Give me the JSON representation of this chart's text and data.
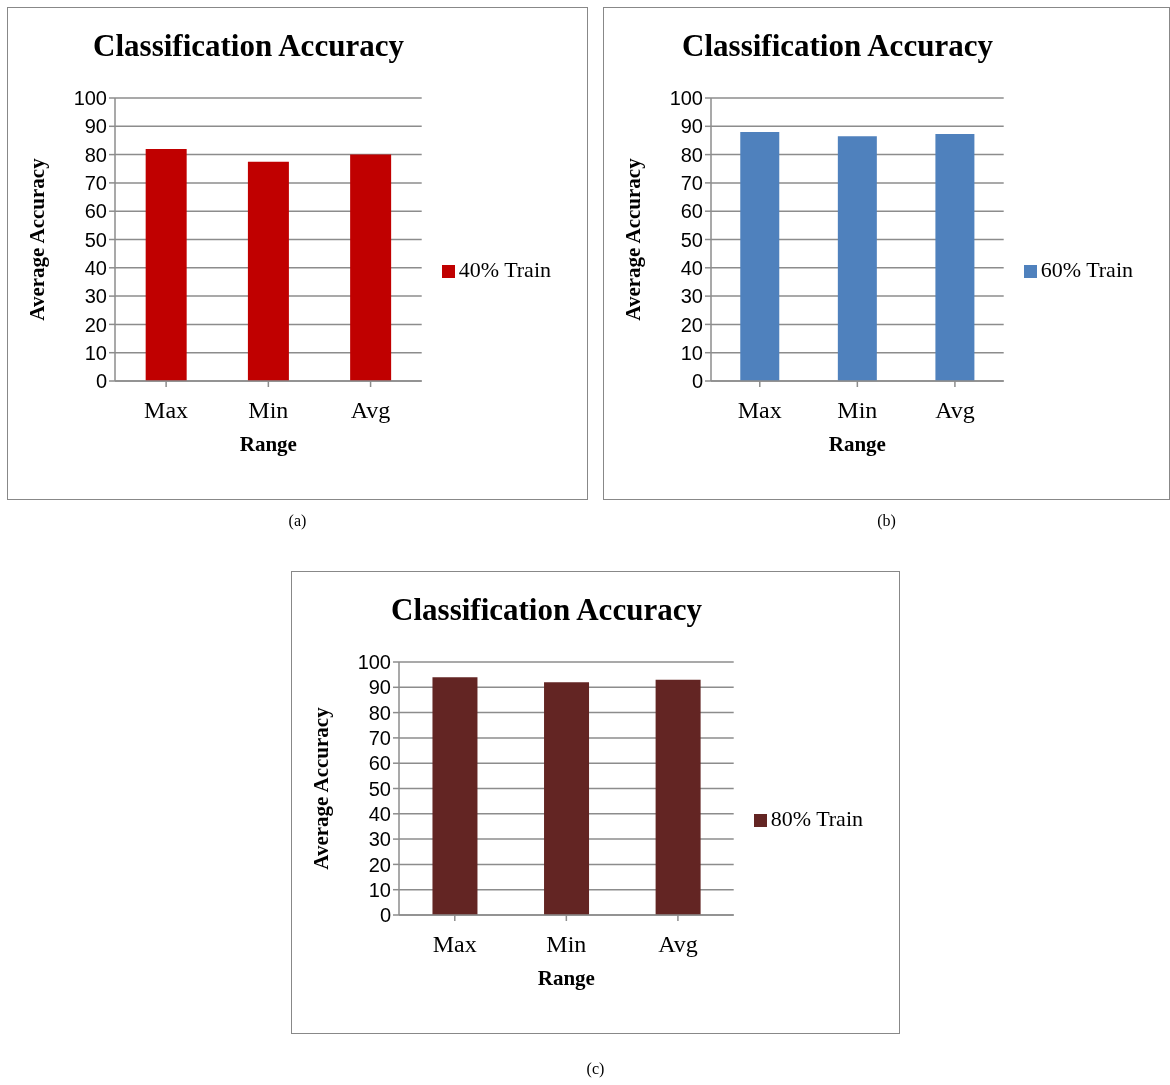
{
  "chart_data": [
    {
      "type": "bar",
      "title": "Classification Accuracy",
      "xlabel": "Range",
      "ylabel": "Average Accuracy",
      "categories": [
        "Max",
        "Min",
        "Avg"
      ],
      "series": [
        {
          "name": "40% Train",
          "color": "#c00000",
          "values": [
            82,
            77.5,
            80
          ]
        }
      ],
      "ylim": [
        0,
        100
      ],
      "yticks": [
        0,
        10,
        20,
        30,
        40,
        50,
        60,
        70,
        80,
        90,
        100
      ],
      "grid": "y",
      "legend": "right",
      "annotations": [
        "(a)"
      ]
    },
    {
      "type": "bar",
      "title": "Classification Accuracy",
      "xlabel": "Range",
      "ylabel": "Average Accuracy",
      "categories": [
        "Max",
        "Min",
        "Avg"
      ],
      "series": [
        {
          "name": "60% Train",
          "color": "#4f81bd",
          "values": [
            88,
            86.5,
            87.3
          ]
        }
      ],
      "ylim": [
        0,
        100
      ],
      "yticks": [
        0,
        10,
        20,
        30,
        40,
        50,
        60,
        70,
        80,
        90,
        100
      ],
      "grid": "y",
      "legend": "right",
      "annotations": [
        "(b)"
      ]
    },
    {
      "type": "bar",
      "title": "Classification Accuracy",
      "xlabel": "Range",
      "ylabel": "Average Accuracy",
      "categories": [
        "Max",
        "Min",
        "Avg"
      ],
      "series": [
        {
          "name": "80% Train",
          "color": "#632523",
          "values": [
            94,
            92,
            93
          ]
        }
      ],
      "ylim": [
        0,
        100
      ],
      "yticks": [
        0,
        10,
        20,
        30,
        40,
        50,
        60,
        70,
        80,
        90,
        100
      ],
      "grid": "y",
      "legend": "right",
      "annotations": [
        "(c)"
      ]
    }
  ]
}
